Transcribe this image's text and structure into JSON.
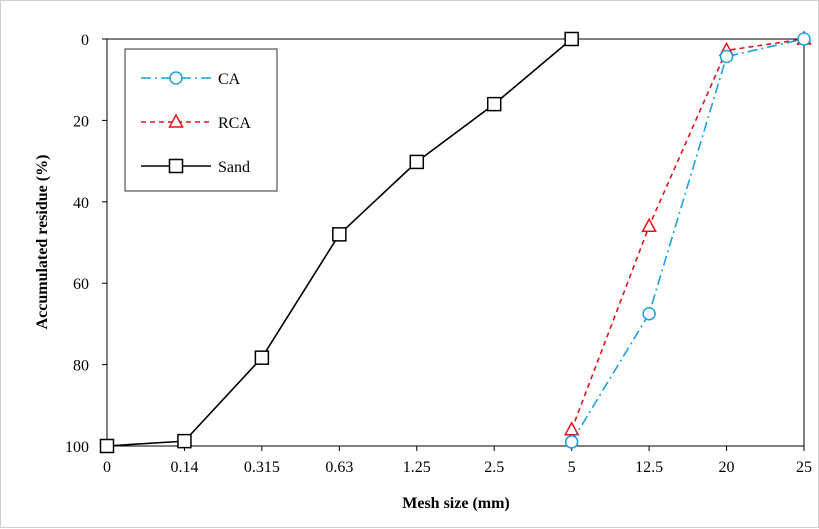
{
  "chart_data": {
    "type": "line",
    "title": "",
    "xlabel": "Mesh size (mm)",
    "ylabel": "Accumulated residue (%)",
    "x_categories": [
      "0",
      "0.14",
      "0.315",
      "0.63",
      "1.25",
      "2.5",
      "5",
      "12.5",
      "20",
      "25"
    ],
    "yticks": [
      "0",
      "20",
      "40",
      "60",
      "80",
      "100"
    ],
    "ylim": [
      0,
      100
    ],
    "y_inverted": true,
    "grid": false,
    "legend_position": "top-left",
    "series": [
      {
        "name": "CA",
        "color": "#1BA1E2",
        "dash": "dash-dot",
        "marker": "circle",
        "points": [
          {
            "x": "5",
            "y": 99
          },
          {
            "x": "12.5",
            "y": 67.5
          },
          {
            "x": "20",
            "y": 4.3
          },
          {
            "x": "25",
            "y": 0
          }
        ]
      },
      {
        "name": "RCA",
        "color": "#E3141B",
        "dash": "dashed",
        "marker": "triangle",
        "points": [
          {
            "x": "5",
            "y": 96
          },
          {
            "x": "12.5",
            "y": 46
          },
          {
            "x": "20",
            "y": 2.8
          },
          {
            "x": "25",
            "y": 0
          }
        ]
      },
      {
        "name": "Sand",
        "color": "#000000",
        "dash": "solid",
        "marker": "square",
        "points": [
          {
            "x": "0",
            "y": 100
          },
          {
            "x": "0.14",
            "y": 98.8
          },
          {
            "x": "0.315",
            "y": 78.3
          },
          {
            "x": "0.63",
            "y": 48
          },
          {
            "x": "1.25",
            "y": 30.2
          },
          {
            "x": "2.5",
            "y": 16
          },
          {
            "x": "5",
            "y": 0
          }
        ]
      }
    ]
  }
}
